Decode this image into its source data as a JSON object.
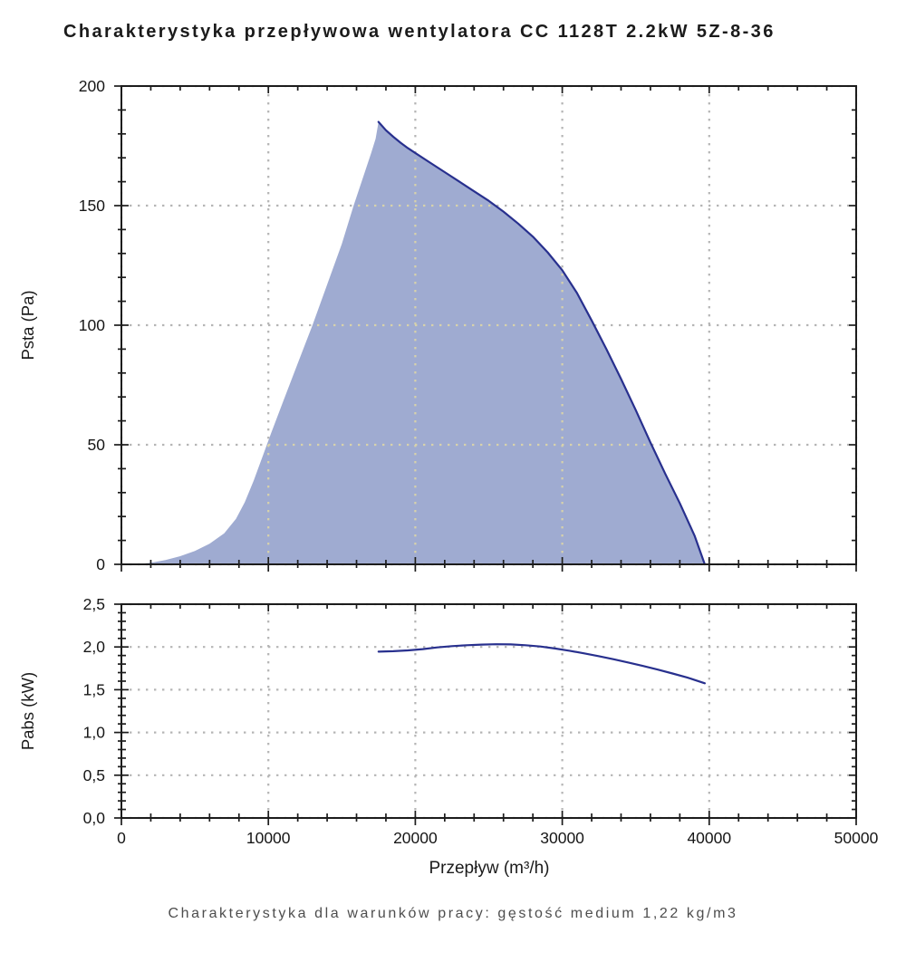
{
  "title": "Charakterystyka przepływowa wentylatora CC 1128T 2.2kW 5Z-8-36",
  "caption": "Charakterystyka dla warunków pracy: gęstość medium 1,22 kg/m3",
  "colors": {
    "curve": "#28308e",
    "fill": "#9fabd1",
    "grid": "#b5b5b5",
    "grid_on_fill": "#d7d2ab",
    "axis": "#1c1c1c",
    "tick_text": "#161616"
  },
  "x_axis": {
    "label": "Przepływ (m³/h)",
    "min": 0,
    "max": 50000,
    "major": 10000,
    "minor": 2000,
    "tick_labels": [
      "0",
      "10000",
      "20000",
      "30000",
      "40000",
      "50000"
    ]
  },
  "chart_data": [
    {
      "type": "area",
      "ylabel": "Psta (Pa)",
      "ylim": [
        0,
        200
      ],
      "y_major": 50,
      "y_minor": 10,
      "y_tick_labels": [
        "0",
        "50",
        "100",
        "150",
        "200"
      ],
      "grid": "dotted",
      "envelope": [
        [
          1000,
          0
        ],
        [
          2000,
          0.7
        ],
        [
          3000,
          1.8
        ],
        [
          4000,
          3.4
        ],
        [
          5000,
          5.6
        ],
        [
          6000,
          8.6
        ],
        [
          7000,
          13
        ],
        [
          7800,
          19
        ],
        [
          8400,
          26
        ],
        [
          9000,
          35
        ],
        [
          9600,
          45
        ],
        [
          10200,
          55
        ],
        [
          11000,
          68
        ],
        [
          12000,
          84
        ],
        [
          13000,
          100
        ],
        [
          14000,
          117
        ],
        [
          15000,
          134
        ],
        [
          15800,
          150
        ],
        [
          16400,
          161
        ],
        [
          17000,
          172
        ],
        [
          17300,
          178
        ],
        [
          17500,
          185
        ]
      ],
      "curve": [
        [
          17500,
          185
        ],
        [
          18000,
          181.5
        ],
        [
          18500,
          178.8
        ],
        [
          19000,
          176.3
        ],
        [
          19500,
          174
        ],
        [
          20000,
          172
        ],
        [
          21000,
          168
        ],
        [
          22000,
          164
        ],
        [
          23000,
          160
        ],
        [
          24000,
          156
        ],
        [
          25000,
          152
        ],
        [
          26000,
          147.5
        ],
        [
          27000,
          142.5
        ],
        [
          28000,
          137
        ],
        [
          29000,
          130.5
        ],
        [
          30000,
          123
        ],
        [
          31000,
          113.5
        ],
        [
          32000,
          102
        ],
        [
          33000,
          90
        ],
        [
          34000,
          77.5
        ],
        [
          35000,
          64.5
        ],
        [
          36000,
          51
        ],
        [
          37000,
          38
        ],
        [
          38000,
          25.5
        ],
        [
          39000,
          12
        ],
        [
          39700,
          0
        ]
      ]
    },
    {
      "type": "line",
      "ylabel": "Pabs (kW)",
      "ylim": [
        0,
        2.5
      ],
      "y_major": 0.5,
      "y_minor": 0.1,
      "y_tick_labels": [
        "0,0",
        "0,5",
        "1,0",
        "1,5",
        "2,0",
        "2,5"
      ],
      "grid": "dotted",
      "series": [
        {
          "name": "Pabs",
          "points": [
            [
              17500,
              1.945
            ],
            [
              18500,
              1.95
            ],
            [
              19500,
              1.96
            ],
            [
              20500,
              1.975
            ],
            [
              21500,
              1.995
            ],
            [
              22500,
              2.01
            ],
            [
              23500,
              2.02
            ],
            [
              24500,
              2.028
            ],
            [
              25500,
              2.032
            ],
            [
              26500,
              2.03
            ],
            [
              27500,
              2.02
            ],
            [
              28500,
              2.005
            ],
            [
              29500,
              1.982
            ],
            [
              30500,
              1.955
            ],
            [
              31500,
              1.925
            ],
            [
              32500,
              1.892
            ],
            [
              33500,
              1.856
            ],
            [
              34500,
              1.818
            ],
            [
              35500,
              1.778
            ],
            [
              36500,
              1.735
            ],
            [
              37500,
              1.69
            ],
            [
              38500,
              1.643
            ],
            [
              39700,
              1.575
            ]
          ]
        }
      ]
    }
  ]
}
